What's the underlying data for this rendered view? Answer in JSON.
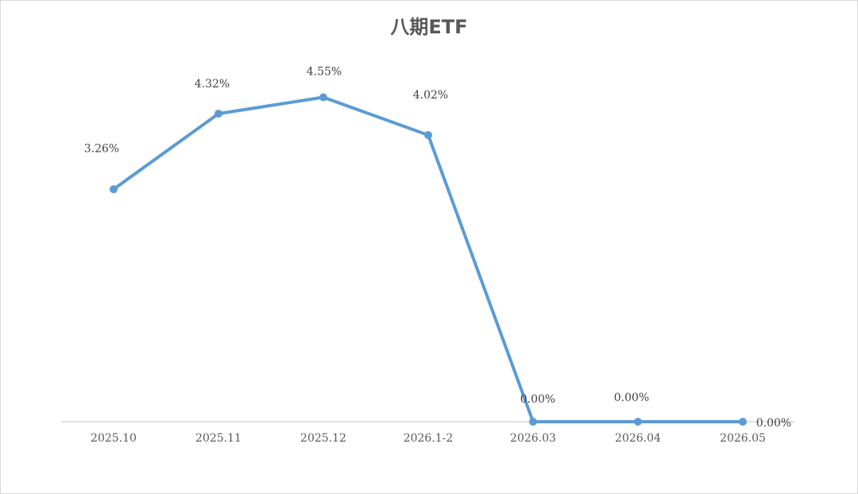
{
  "chart_data": {
    "type": "line",
    "title": "八期ETF",
    "xlabel": "",
    "ylabel": "",
    "categories": [
      "2025.10",
      "2025.11",
      "2025.12",
      "2026.1-2",
      "2026.03",
      "2026.04",
      "2026.05"
    ],
    "series": [
      {
        "values": [
          3.26,
          4.32,
          4.55,
          4.02,
          0.0,
          0.0,
          0.0
        ],
        "data_labels": [
          "3.26%",
          "4.32%",
          "4.55%",
          "4.02%",
          "0.00%",
          "0.00%",
          "0.00%"
        ],
        "color": "#5b9bd5"
      }
    ],
    "ylim": [
      0,
      4.6
    ],
    "value_unit": "%",
    "grid": false,
    "legend": "none",
    "axis_color": "#d9d9d9"
  }
}
